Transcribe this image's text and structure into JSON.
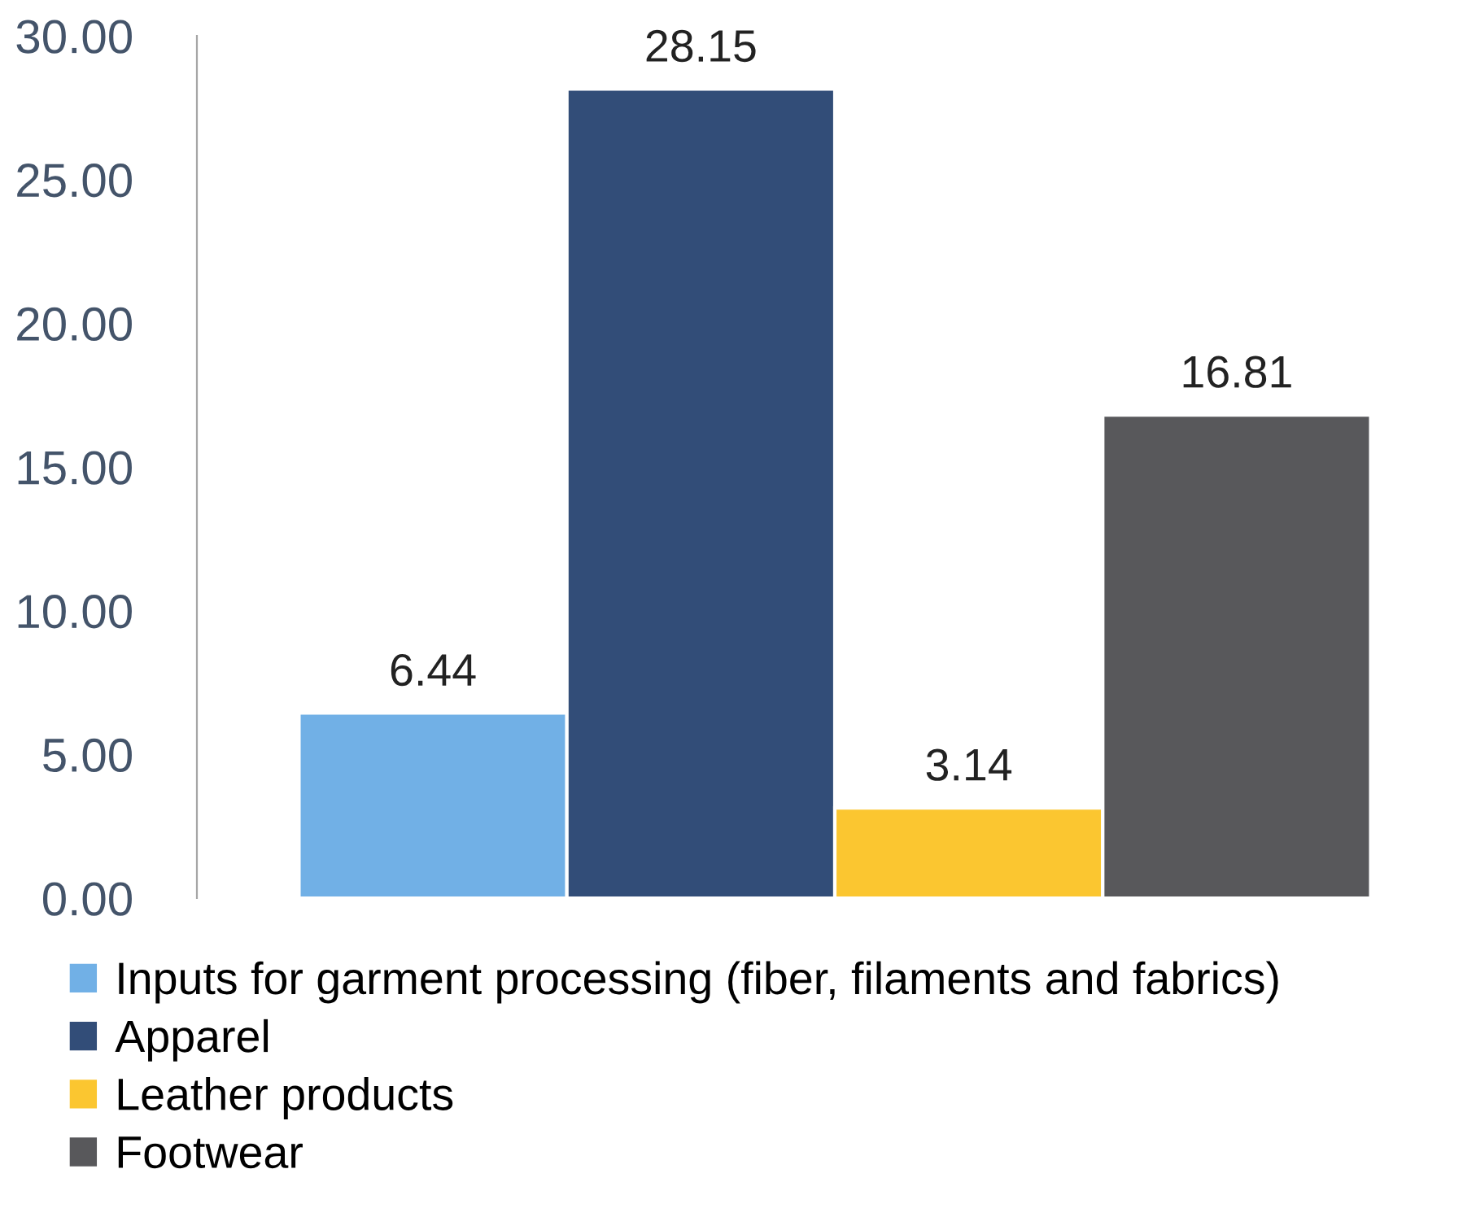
{
  "chart_data": {
    "type": "bar",
    "categories": [
      null
    ],
    "series": [
      {
        "name": "Inputs for garment processing (fiber, filaments and fabrics)",
        "color": "#71b0e6",
        "values": [
          6.44
        ]
      },
      {
        "name": "Apparel",
        "color": "#324d78",
        "values": [
          28.15
        ]
      },
      {
        "name": "Leather products",
        "color": "#fbc630",
        "values": [
          3.14
        ]
      },
      {
        "name": "Footwear",
        "color": "#58585b",
        "values": [
          16.81
        ]
      }
    ],
    "ylim": [
      0,
      30
    ],
    "yticks": [
      {
        "value": 0,
        "label": "0.00"
      },
      {
        "value": 5,
        "label": "5.00"
      },
      {
        "value": 10,
        "label": "10.00"
      },
      {
        "value": 15,
        "label": "15.00"
      },
      {
        "value": 20,
        "label": "20.00"
      },
      {
        "value": 25,
        "label": "25.00"
      },
      {
        "value": 30,
        "label": "30.00"
      }
    ],
    "data_labels": true,
    "legend": "bottom",
    "grid": false,
    "tick_labels": "y"
  }
}
